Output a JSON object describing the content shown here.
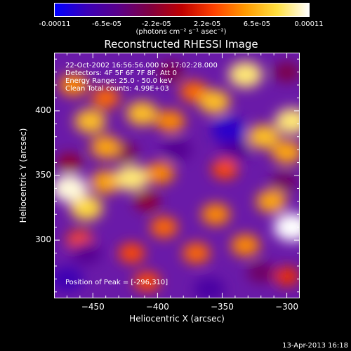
{
  "colorbar": {
    "ticks": [
      "-0.00011",
      "-6.5e-05",
      "-2.2e-05",
      "2.2e-05",
      "6.5e-05",
      "0.00011"
    ],
    "tick_values": [
      -0.00011,
      -6.5e-05,
      -2.2e-05,
      2.2e-05,
      6.5e-05,
      0.00011
    ],
    "range": [
      -0.00011,
      0.00011
    ],
    "units": "(photons cm⁻² s⁻¹ asec⁻²)",
    "colors": [
      "#0000ff",
      "#3a00b8",
      "#5a008a",
      "#800040",
      "#c00000",
      "#ff4000",
      "#ff9a00",
      "#ffe040",
      "#ffffff"
    ]
  },
  "title": "Reconstructed RHESSI Image",
  "info_lines": [
    "22-Oct-2002 16:56:56.000 to 17:02:28.000",
    "Detectors: 4F 5F 6F 7F 8F, Att 0",
    "Energy Range: 25.0 - 50.0 keV",
    "Clean    Total counts: 4.99E+03"
  ],
  "peak_label": "Position of Peak = [-296,310]",
  "footer": "13-Apr-2013 16:18",
  "chart_data": {
    "type": "heatmap",
    "title": "Reconstructed RHESSI Image",
    "xlabel": "Heliocentric X (arcsec)",
    "ylabel": "Heliocentric Y (arcsec)",
    "xlim": [
      -480,
      -290
    ],
    "ylim": [
      255,
      445
    ],
    "x_ticks": [
      -450,
      -400,
      -350,
      -300
    ],
    "x_tick_labels": [
      "−450",
      "−400",
      "−350",
      "−300"
    ],
    "y_ticks": [
      300,
      350,
      400
    ],
    "y_tick_labels": [
      "300",
      "350",
      "400"
    ],
    "peak": [
      -296,
      310
    ],
    "blobs": [
      {
        "x": -468,
        "y": 340,
        "v": 0.000105
      },
      {
        "x": -455,
        "y": 325,
        "v": 8e-05
      },
      {
        "x": -440,
        "y": 345,
        "v": 6e-05
      },
      {
        "x": -420,
        "y": 348,
        "v": 9e-05
      },
      {
        "x": -398,
        "y": 352,
        "v": 5e-05
      },
      {
        "x": -440,
        "y": 372,
        "v": 6e-05
      },
      {
        "x": -452,
        "y": 392,
        "v": 7e-05
      },
      {
        "x": -412,
        "y": 398,
        "v": 7e-05
      },
      {
        "x": -390,
        "y": 392,
        "v": 5e-05
      },
      {
        "x": -372,
        "y": 415,
        "v": 4e-05
      },
      {
        "x": -356,
        "y": 407,
        "v": 7e-05
      },
      {
        "x": -332,
        "y": 428,
        "v": 9e-05
      },
      {
        "x": -318,
        "y": 380,
        "v": 7e-05
      },
      {
        "x": -300,
        "y": 368,
        "v": 6e-05
      },
      {
        "x": -296,
        "y": 392,
        "v": 9e-05
      },
      {
        "x": -296,
        "y": 310,
        "v": 0.00011
      },
      {
        "x": -312,
        "y": 330,
        "v": 6e-05
      },
      {
        "x": -332,
        "y": 296,
        "v": 5e-05
      },
      {
        "x": -355,
        "y": 320,
        "v": 5e-05
      },
      {
        "x": -370,
        "y": 290,
        "v": 4e-05
      },
      {
        "x": -395,
        "y": 310,
        "v": 4e-05
      },
      {
        "x": -420,
        "y": 290,
        "v": 3e-05
      },
      {
        "x": -408,
        "y": 268,
        "v": 3e-05
      },
      {
        "x": -460,
        "y": 300,
        "v": 3e-05
      },
      {
        "x": -348,
        "y": 355,
        "v": 3e-05
      },
      {
        "x": -440,
        "y": 410,
        "v": 4e-05
      },
      {
        "x": -465,
        "y": 420,
        "v": 5e-05
      },
      {
        "x": -300,
        "y": 272,
        "v": 2e-05
      },
      {
        "x": -385,
        "y": 370,
        "v": -6e-05
      },
      {
        "x": -345,
        "y": 385,
        "v": -9e-05
      },
      {
        "x": -340,
        "y": 370,
        "v": -6e-05
      },
      {
        "x": -470,
        "y": 270,
        "v": -8e-05
      },
      {
        "x": -455,
        "y": 290,
        "v": -6e-05
      },
      {
        "x": -360,
        "y": 262,
        "v": -7e-05
      },
      {
        "x": -320,
        "y": 275,
        "v": -4e-05
      },
      {
        "x": -426,
        "y": 368,
        "v": -3e-05
      },
      {
        "x": -468,
        "y": 360,
        "v": -2e-05
      },
      {
        "x": -300,
        "y": 430,
        "v": -3e-05
      },
      {
        "x": -302,
        "y": 345,
        "v": -4e-05
      },
      {
        "x": -390,
        "y": 430,
        "v": -3e-05
      },
      {
        "x": -408,
        "y": 330,
        "v": -2e-05
      }
    ]
  }
}
